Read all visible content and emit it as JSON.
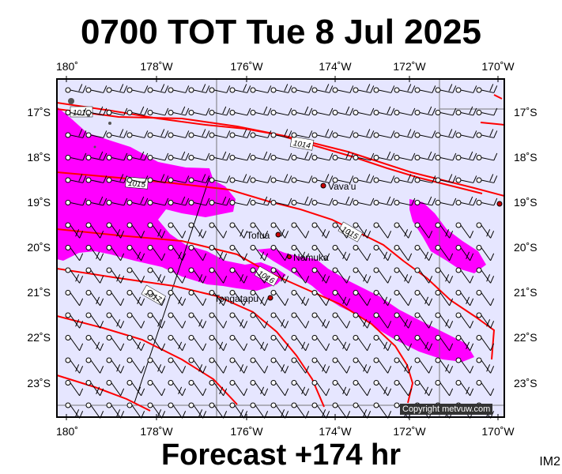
{
  "title": "0700 TOT Tue 8 Jul 2025",
  "footer": "Forecast +174 hr",
  "corner_label": "IM2",
  "copyright": "Copyright metvuw.com",
  "lon_ticks_top": [
    "180˚",
    "178˚W",
    "176˚W",
    "174˚W",
    "172˚W",
    "170˚W"
  ],
  "lon_ticks_bottom": [
    "180˚",
    "178˚W",
    "176˚W",
    "174˚W",
    "172˚W",
    "170˚W"
  ],
  "lat_ticks_left": [
    "17˚S",
    "18˚S",
    "19˚S",
    "20˚S",
    "21˚S",
    "22˚S",
    "23˚S"
  ],
  "lat_ticks_right": [
    "17˚S",
    "18˚S",
    "19˚S",
    "20˚S",
    "21˚S",
    "22˚S",
    "23˚S"
  ],
  "places": [
    {
      "name": "Vava'u"
    },
    {
      "name": "Tofua"
    },
    {
      "name": "Nomuka"
    },
    {
      "name": "Tongatapu"
    }
  ],
  "isobar_labels": [
    "1013",
    "1014",
    "1015",
    "1015",
    "1016",
    "1017"
  ],
  "colors": {
    "sea": "#e6e6ff",
    "rain": "#ff00ff",
    "isobar": "#ff0000",
    "frame": "#000000"
  }
}
